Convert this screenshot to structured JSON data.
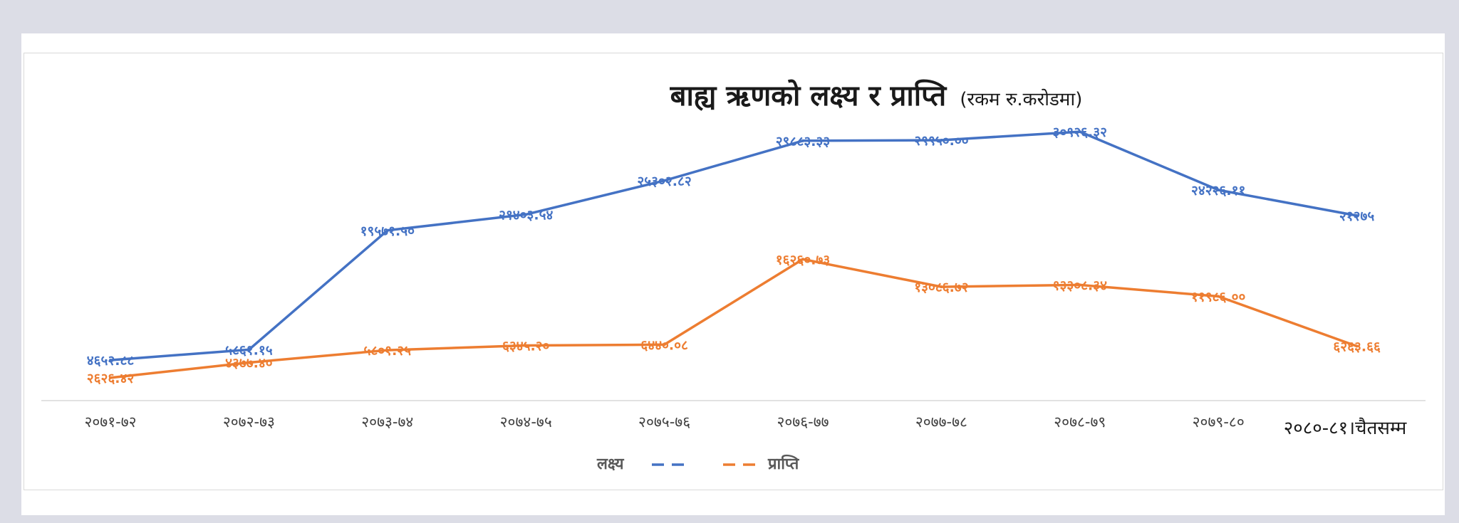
{
  "chart_data": {
    "type": "line",
    "title": "बाह्य ऋणको लक्ष्य र प्राप्ति",
    "subtitle": "(रकम रु.करोडमा)",
    "categories": [
      "२०७१-७२",
      "२०७२-७३",
      "२०७३-७४",
      "२०७४-७५",
      "२०७५-७६",
      "२०७६-७७",
      "२०७७-७८",
      "२०७८-७९",
      "२०७९-८०",
      "२०८०-८१।चैतसम्म"
    ],
    "ylim": [
      0,
      35000
    ],
    "series": [
      {
        "name": "लक्ष्य",
        "color": "#4472c4",
        "values": [
          4652.88,
          5861.15,
          19571.5,
          21403.54,
          25302.82,
          29883.33,
          29950.0,
          30926.32,
          24226.11,
          21275
        ],
        "labels": [
          "४६५२.८८",
          "५८६१.१५",
          "१९५७१.५०",
          "२१४०३.५४",
          "२५३०२.८२",
          "२९८८३.३३",
          "२९९५०.००",
          "३०९२६.३२",
          "२४२२६.११",
          "२१२७५"
        ]
      },
      {
        "name": "प्राप्ति",
        "color": "#ed7d31",
        "values": [
          2626.42,
          4377.4,
          5801.25,
          6345.2,
          6440.08,
          16260.73,
          13086.72,
          13308.34,
          11986.0,
          6263.66
        ],
        "labels": [
          "२६२६.४२",
          "४३७७.४०",
          "५८०१.२५",
          "६३४५.२०",
          "६४४०.०८",
          "१६२६०.७३",
          "१३०८६.७२",
          "१३३०८.३४",
          "११९८६.००",
          "६२६३.६६"
        ]
      }
    ],
    "legend": "bottom"
  }
}
